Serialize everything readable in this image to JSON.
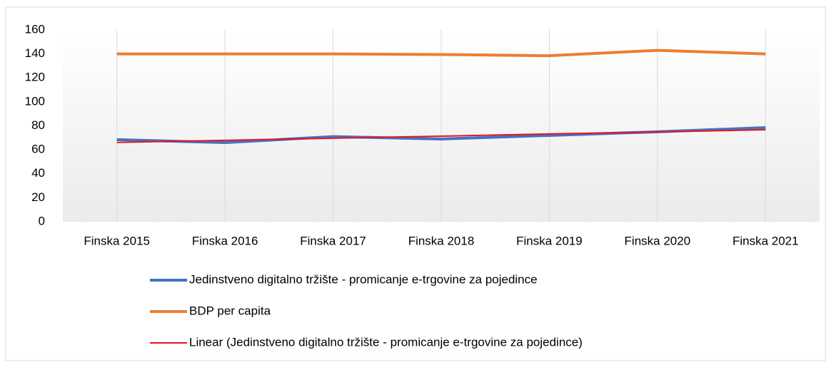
{
  "chart_data": {
    "type": "line",
    "categories": [
      "Finska 2015",
      "Finska 2016",
      "Finska 2017",
      "Finska 2018",
      "Finska 2019",
      "Finska 2020",
      "Finska 2021"
    ],
    "series": [
      {
        "name": "Jedinstveno digitalno tržište - promicanje e-trgovine za pojedince",
        "color": "#4472c4",
        "width": 4,
        "values": [
          68.5,
          66,
          71,
          69,
          72,
          75,
          78.5
        ]
      },
      {
        "name": "BDP per capita",
        "color": "#ed7d31",
        "width": 4,
        "values": [
          140,
          140,
          140,
          139.5,
          138.5,
          143,
          140
        ]
      },
      {
        "name": "Linear (Jedinstveno digitalno tržište - promicanje e-trgovine za pojedince)",
        "color": "#e8141c",
        "width": 2,
        "values": [
          66.2,
          67.9,
          69.7,
          71.4,
          73.2,
          74.9,
          76.7
        ]
      }
    ],
    "ylim": [
      0,
      160
    ],
    "yticks": [
      0,
      20,
      40,
      60,
      80,
      100,
      120,
      140,
      160
    ],
    "grid": "x",
    "legend": "bottom"
  }
}
